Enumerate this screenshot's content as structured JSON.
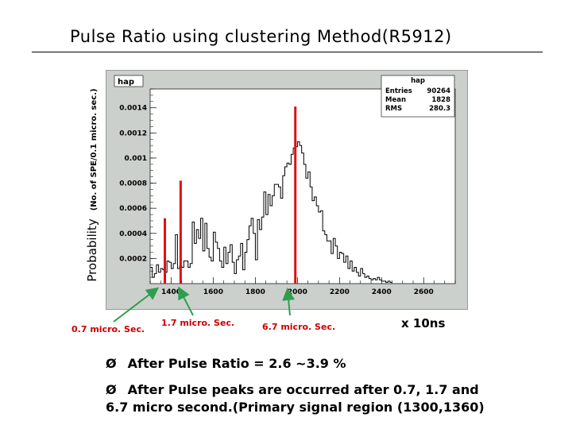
{
  "slide": {
    "title": "Pulse Ratio using clustering Method(R5912)",
    "ylabel_main": "Probability",
    "ylabel_sub": "(No. of SPE/0.1 micro. sec.)",
    "x_unit": "x 10ns",
    "bullets": [
      {
        "marker": "Ø",
        "text": "After Pulse Ratio = 2.6 ~3.9 %"
      },
      {
        "marker": "Ø",
        "text": "After Pulse peaks are occurred after  0.7, 1.7 and",
        "continuation": "6.7 micro second.(Primary signal region (1300,1360)"
      }
    ]
  },
  "annotations": [
    {
      "label": "0.7 micro. Sec.",
      "x": 1370
    },
    {
      "label": "1.7 micro. Sec.",
      "x": 1470
    },
    {
      "label": "6.7 micro. Sec.",
      "x": 1970
    }
  ],
  "colors": {
    "marker_line": "#dd1111",
    "arrow": "#2e9e4e",
    "annot_text": "#cc0000",
    "plot_bg": "#ccd0cc",
    "pad_bg": "#ffffff",
    "hist": "#000000"
  },
  "chart_data": {
    "type": "histogram",
    "hist_name": "hap",
    "stats_title": "hap",
    "stats": [
      {
        "name": "Entries",
        "value": "90264"
      },
      {
        "name": "Mean",
        "value": "1828"
      },
      {
        "name": "RMS",
        "value": "280.3"
      }
    ],
    "xlim": [
      1300,
      2750
    ],
    "ylim": [
      0,
      0.00155
    ],
    "x_ticks": [
      1400,
      1600,
      1800,
      2000,
      2200,
      2400,
      2600
    ],
    "y_ticks": [
      {
        "value": 0.0002,
        "label": "0.0002"
      },
      {
        "value": 0.0004,
        "label": "0.0004"
      },
      {
        "value": 0.0006,
        "label": "0.0006"
      },
      {
        "value": 0.0008,
        "label": "0.0008"
      },
      {
        "value": 0.001,
        "label": "0.001"
      },
      {
        "value": 0.0012,
        "label": "0.0012"
      },
      {
        "value": 0.0014,
        "label": "0.0014"
      }
    ],
    "bin_width": 10,
    "bin_start": 1300,
    "bin_values": [
      0.00013,
      5e-05,
      8e-05,
      0.00015,
      9e-05,
      0.00012,
      0.00011,
      9e-05,
      0.00018,
      0.00017,
      0.00012,
      0.00016,
      0.00039,
      0.00012,
      0.00014,
      0.00013,
      0.00018,
      0.00018,
      0.00013,
      0.00016,
      0.00049,
      0.00032,
      0.00043,
      0.00036,
      0.00052,
      0.00026,
      0.00048,
      0.00028,
      0.00021,
      0.00018,
      0.00041,
      0.00033,
      0.00028,
      0.00018,
      0.00013,
      0.00029,
      0.00016,
      0.00025,
      0.00031,
      0.00017,
      8e-05,
      0.00019,
      0.00022,
      0.00032,
      0.00011,
      0.00025,
      0.00035,
      0.00046,
      0.00052,
      0.0004,
      0.00019,
      0.00051,
      0.00043,
      0.00053,
      0.00073,
      0.00055,
      0.00071,
      0.00062,
      0.0007,
      0.00079,
      0.00079,
      0.00077,
      0.00068,
      0.00086,
      0.00093,
      0.00096,
      0.00095,
      0.00103,
      0.00108,
      0.00109,
      0.00113,
      0.0011,
      0.00104,
      0.00095,
      0.00084,
      0.00089,
      0.00077,
      0.00066,
      0.00069,
      0.00062,
      0.00057,
      0.00058,
      0.00042,
      0.00039,
      0.00034,
      0.00034,
      0.00024,
      0.00036,
      0.0003,
      0.0002,
      0.00025,
      0.00024,
      0.00017,
      0.00022,
      0.00012,
      0.00018,
      0.0001,
      0.00013,
      9e-05,
      6e-05,
      0.00012,
      8e-05,
      5e-05,
      6e-05,
      4e-05,
      3e-05,
      4e-05,
      3e-05,
      5e-05,
      3e-05,
      2e-05,
      2e-05,
      1e-05,
      2e-05,
      1e-05
    ],
    "marker_lines": [
      {
        "x": 1370,
        "top": 0.00052
      },
      {
        "x": 1445,
        "top": 0.00082
      },
      {
        "x": 1990,
        "top": 0.00141
      }
    ]
  }
}
